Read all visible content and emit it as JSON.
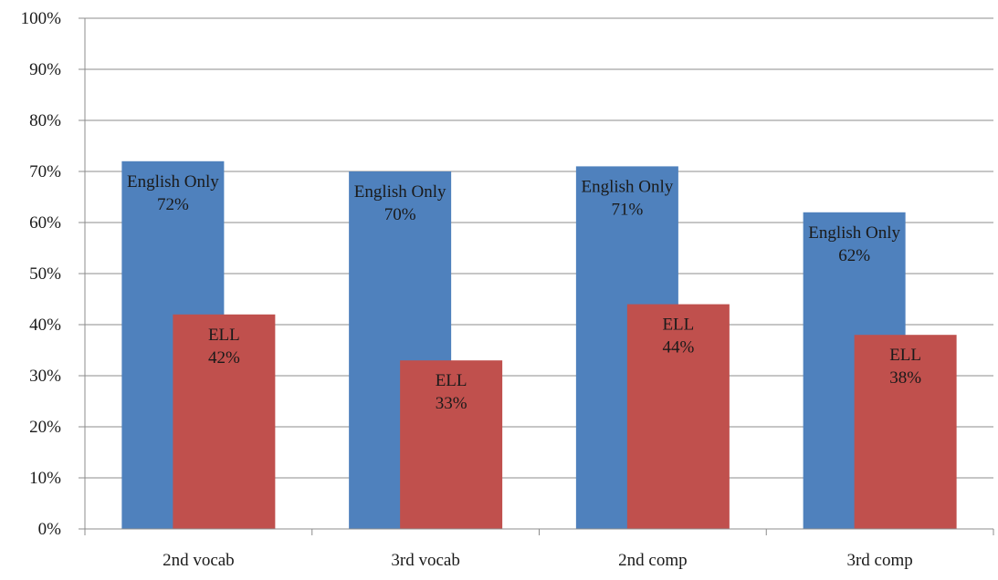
{
  "chart_data": {
    "type": "bar",
    "title": "",
    "xlabel": "",
    "ylabel": "",
    "categories": [
      "2nd vocab",
      "3rd vocab",
      "2nd comp",
      "3rd comp"
    ],
    "series": [
      {
        "name": "English Only",
        "color": "#4f81bd",
        "values": [
          72,
          70,
          71,
          62
        ],
        "value_labels": [
          "72%",
          "70%",
          "71%",
          "62%"
        ]
      },
      {
        "name": "ELL",
        "color": "#c0504d",
        "values": [
          42,
          33,
          44,
          38
        ],
        "value_labels": [
          "42%",
          "33%",
          "44%",
          "38%"
        ]
      }
    ],
    "ylim": [
      0,
      100
    ],
    "yticks": [
      0,
      10,
      20,
      30,
      40,
      50,
      60,
      70,
      80,
      90,
      100
    ],
    "ytick_labels": [
      "0%",
      "10%",
      "20%",
      "30%",
      "40%",
      "50%",
      "60%",
      "70%",
      "80%",
      "90%",
      "100%"
    ],
    "grid": true,
    "legend": "none",
    "bar_overlap": true
  }
}
